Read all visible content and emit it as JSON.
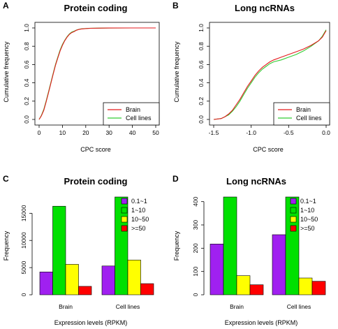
{
  "chart_data": [
    {
      "panel": "A",
      "type": "line",
      "title": "Protein coding",
      "xlabel": "CPC score",
      "ylabel": "Cumulative frequency",
      "xlim": [
        0,
        50
      ],
      "ylim": [
        0,
        1
      ],
      "xticks": [
        "0",
        "10",
        "20",
        "30",
        "40",
        "50"
      ],
      "yticks": [
        "0.0",
        "0.2",
        "0.4",
        "0.6",
        "0.8",
        "1.0"
      ],
      "legend_position": "bottom-right",
      "series": [
        {
          "name": "Brain",
          "color": "#e41a1c",
          "x": [
            0,
            1,
            2,
            3,
            4,
            5,
            6,
            7,
            8,
            9,
            10,
            11,
            12,
            13,
            14,
            15,
            16,
            17,
            18,
            20,
            22,
            25,
            30,
            40,
            50
          ],
          "y": [
            0.0,
            0.04,
            0.1,
            0.19,
            0.29,
            0.39,
            0.49,
            0.59,
            0.67,
            0.75,
            0.81,
            0.86,
            0.9,
            0.93,
            0.95,
            0.96,
            0.975,
            0.983,
            0.988,
            0.993,
            0.996,
            0.998,
            0.999,
            1.0,
            1.0
          ]
        },
        {
          "name": "Cell lines",
          "color": "#33cc33",
          "x": [
            0,
            1,
            2,
            3,
            4,
            5,
            6,
            7,
            8,
            9,
            10,
            11,
            12,
            13,
            14,
            15,
            16,
            17,
            18,
            20,
            22,
            25,
            30,
            40,
            50
          ],
          "y": [
            0.0,
            0.045,
            0.11,
            0.2,
            0.3,
            0.4,
            0.5,
            0.6,
            0.68,
            0.76,
            0.82,
            0.865,
            0.905,
            0.935,
            0.955,
            0.965,
            0.977,
            0.985,
            0.99,
            0.994,
            0.997,
            0.998,
            0.999,
            1.0,
            1.0
          ]
        }
      ]
    },
    {
      "panel": "B",
      "type": "line",
      "title": "Long ncRNAs",
      "xlabel": "CPC score",
      "ylabel": "Cumulative frequency",
      "xlim": [
        -1.5,
        0.0
      ],
      "ylim": [
        0,
        1
      ],
      "xticks": [
        "-1.5",
        "-1.0",
        "-0.5",
        "0.0"
      ],
      "yticks": [
        "0.0",
        "0.2",
        "0.4",
        "0.6",
        "0.8",
        "1.0"
      ],
      "legend_position": "bottom-right",
      "series": [
        {
          "name": "Brain",
          "color": "#e41a1c",
          "x": [
            -1.5,
            -1.4,
            -1.35,
            -1.3,
            -1.25,
            -1.2,
            -1.15,
            -1.1,
            -1.05,
            -1.0,
            -0.95,
            -0.9,
            -0.85,
            -0.8,
            -0.75,
            -0.7,
            -0.6,
            -0.5,
            -0.4,
            -0.3,
            -0.2,
            -0.1,
            -0.05,
            0.0
          ],
          "y": [
            0.0,
            0.01,
            0.03,
            0.06,
            0.1,
            0.16,
            0.22,
            0.29,
            0.36,
            0.42,
            0.48,
            0.53,
            0.57,
            0.6,
            0.63,
            0.65,
            0.68,
            0.71,
            0.74,
            0.77,
            0.81,
            0.86,
            0.9,
            0.97
          ]
        },
        {
          "name": "Cell lines",
          "color": "#33cc33",
          "x": [
            -1.5,
            -1.4,
            -1.35,
            -1.3,
            -1.25,
            -1.2,
            -1.15,
            -1.1,
            -1.05,
            -1.0,
            -0.95,
            -0.9,
            -0.85,
            -0.8,
            -0.75,
            -0.7,
            -0.6,
            -0.5,
            -0.4,
            -0.3,
            -0.2,
            -0.1,
            -0.05,
            0.0
          ],
          "y": [
            0.0,
            0.01,
            0.03,
            0.05,
            0.09,
            0.14,
            0.2,
            0.27,
            0.34,
            0.4,
            0.46,
            0.51,
            0.55,
            0.58,
            0.61,
            0.63,
            0.65,
            0.68,
            0.71,
            0.75,
            0.8,
            0.86,
            0.91,
            0.98
          ]
        }
      ]
    },
    {
      "panel": "C",
      "type": "bar",
      "title": "Protein coding",
      "xlabel": "Expression levels (RPKM)",
      "ylabel": "Frequency",
      "ylim": [
        0,
        18000
      ],
      "yticks": [
        "0",
        "5000",
        "10000",
        "15000"
      ],
      "categories": [
        "Brain",
        "Cell lines"
      ],
      "legend_position": "top-right",
      "series": [
        {
          "name": "0.1~1",
          "color": "#a020f0",
          "values": [
            4200,
            5300
          ]
        },
        {
          "name": "1~10",
          "color": "#00e000",
          "values": [
            16300,
            18000
          ]
        },
        {
          "name": "10~50",
          "color": "#ffff00",
          "values": [
            5600,
            6400
          ]
        },
        {
          "name": ">=50",
          "color": "#ff0000",
          "values": [
            1550,
            2050
          ]
        }
      ]
    },
    {
      "panel": "D",
      "type": "bar",
      "title": "Long ncRNAs",
      "xlabel": "Expression levels (RPKM)",
      "ylabel": "Frequency",
      "ylim": [
        0,
        420
      ],
      "yticks": [
        "0",
        "100",
        "200",
        "300",
        "400"
      ],
      "categories": [
        "Brain",
        "Cell lines"
      ],
      "legend_position": "top-right",
      "series": [
        {
          "name": "0.1~1",
          "color": "#a020f0",
          "values": [
            218,
            258
          ]
        },
        {
          "name": "1~10",
          "color": "#00e000",
          "values": [
            420,
            420
          ]
        },
        {
          "name": "10~50",
          "color": "#ffff00",
          "values": [
            82,
            72
          ]
        },
        {
          "name": ">=50",
          "color": "#ff0000",
          "values": [
            43,
            58
          ]
        }
      ]
    }
  ]
}
